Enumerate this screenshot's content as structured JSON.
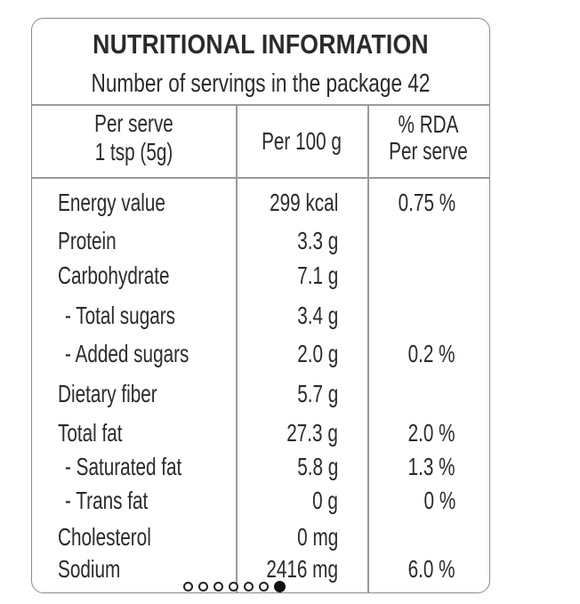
{
  "label": {
    "title": "NUTRITIONAL INFORMATION",
    "servings": "Number of servings in the package 42",
    "headers": {
      "col1_line1": "Per serve",
      "col1_line2": "1 tsp (5g)",
      "col2": "Per 100 g",
      "col3_line1": "% RDA",
      "col3_line2": "Per serve"
    },
    "rows": [
      {
        "name": "Energy value",
        "per100": "299 kcal",
        "rda": "0.75 %"
      },
      {
        "name": "Protein",
        "per100": "3.3 g",
        "rda": ""
      },
      {
        "name": "Carbohydrate",
        "per100": "7.1 g",
        "rda": ""
      },
      {
        "name": "- Total sugars",
        "per100": "3.4 g",
        "rda": ""
      },
      {
        "name": "- Added sugars",
        "per100": "2.0 g",
        "rda": "0.2 %"
      },
      {
        "name": "Dietary fiber",
        "per100": "5.7 g",
        "rda": ""
      },
      {
        "name": "Total fat",
        "per100": "27.3 g",
        "rda": "2.0 %"
      },
      {
        "name": "- Saturated fat",
        "per100": "5.8 g",
        "rda": "1.3 %"
      },
      {
        "name": "- Trans fat",
        "per100": "0 g",
        "rda": "0 %"
      },
      {
        "name": "Cholesterol",
        "per100": "0 mg",
        "rda": ""
      },
      {
        "name": "Sodium",
        "per100": "2416 mg",
        "rda": "6.0 %"
      }
    ]
  },
  "carousel": {
    "total": 7,
    "active_index": 6
  }
}
